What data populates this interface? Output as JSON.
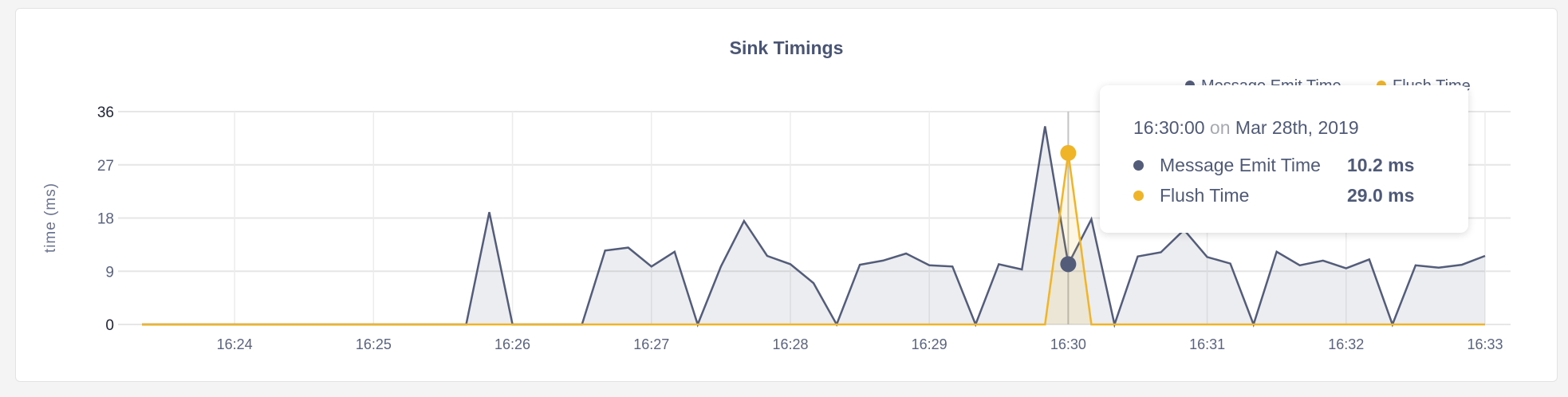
{
  "chart_data": {
    "type": "area",
    "title": "Sink Timings",
    "ylabel": "time (ms)",
    "xlabel": "",
    "ylim": [
      0,
      36
    ],
    "yticks": [
      "0",
      "9",
      "18",
      "27",
      "36"
    ],
    "xticks": [
      "16:24",
      "16:25",
      "16:26",
      "16:27",
      "16:28",
      "16:29",
      "16:30",
      "16:31",
      "16:32",
      "16:33"
    ],
    "grid": true,
    "legend_placement": "top-right",
    "x": [
      "16:23:20",
      "16:23:30",
      "16:23:40",
      "16:23:50",
      "16:24:00",
      "16:24:10",
      "16:24:20",
      "16:24:30",
      "16:24:40",
      "16:24:50",
      "16:25:00",
      "16:25:10",
      "16:25:20",
      "16:25:30",
      "16:25:40",
      "16:25:50",
      "16:26:00",
      "16:26:10",
      "16:26:20",
      "16:26:30",
      "16:26:40",
      "16:26:50",
      "16:27:00",
      "16:27:10",
      "16:27:20",
      "16:27:30",
      "16:27:40",
      "16:27:50",
      "16:28:00",
      "16:28:10",
      "16:28:20",
      "16:28:30",
      "16:28:40",
      "16:28:50",
      "16:29:00",
      "16:29:10",
      "16:29:20",
      "16:29:30",
      "16:29:40",
      "16:29:50",
      "16:30:00",
      "16:30:10",
      "16:30:20",
      "16:30:30",
      "16:30:40",
      "16:30:50",
      "16:31:00",
      "16:31:10",
      "16:31:20",
      "16:31:30",
      "16:31:40",
      "16:31:50",
      "16:32:00",
      "16:32:10",
      "16:32:20",
      "16:32:30",
      "16:32:40",
      "16:32:50",
      "16:33:00"
    ],
    "series": [
      {
        "name": "Message Emit Time",
        "color": "#535d7a",
        "values": [
          0,
          0,
          0,
          0,
          0,
          0,
          0,
          0,
          0,
          0,
          0,
          0,
          0,
          0,
          0,
          19,
          0,
          0,
          0,
          0,
          12.5,
          13,
          9.8,
          12.3,
          0,
          9.8,
          17.5,
          11.6,
          10.2,
          7,
          0,
          10.1,
          10.8,
          12,
          10,
          9.8,
          0,
          10.2,
          9.3,
          33.5,
          10.2,
          17.8,
          0,
          11.5,
          12.2,
          16,
          11.4,
          10.3,
          0,
          12.3,
          10,
          10.8,
          9.5,
          11,
          0,
          10,
          9.6,
          10.1,
          11.6
        ]
      },
      {
        "name": "Flush Time",
        "color": "#f0b429",
        "values": [
          0,
          0,
          0,
          0,
          0,
          0,
          0,
          0,
          0,
          0,
          0,
          0,
          0,
          0,
          0,
          0,
          0,
          0,
          0,
          0,
          0,
          0,
          0,
          0,
          0,
          0,
          0,
          0,
          0,
          0,
          0,
          0,
          0,
          0,
          0,
          0,
          0,
          0,
          0,
          0,
          29,
          0,
          0,
          0,
          0,
          0,
          0,
          0,
          0,
          0,
          0,
          0,
          0,
          0,
          0,
          0,
          0,
          0,
          0
        ]
      }
    ],
    "hover_x": "16:30:00"
  },
  "tooltip": {
    "time": "16:30:00",
    "on": "on",
    "date": "Mar 28th, 2019",
    "rows": [
      {
        "name": "Message Emit Time",
        "value": "10.2 ms",
        "color": "#535d7a"
      },
      {
        "name": "Flush Time",
        "value": "29.0 ms",
        "color": "#f0b429"
      }
    ]
  }
}
